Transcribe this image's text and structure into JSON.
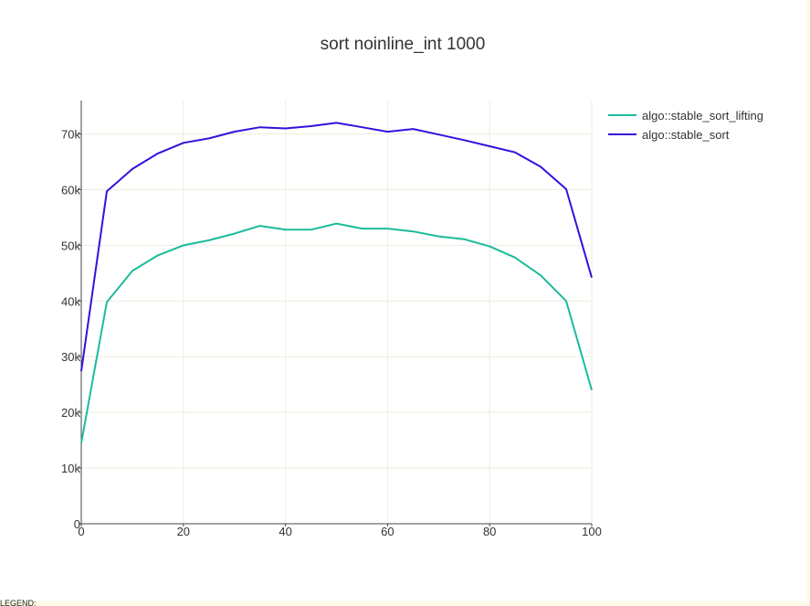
{
  "chart_data": {
    "type": "line",
    "title": "sort noinline_int 1000",
    "xlabel": "",
    "ylabel": "",
    "xlim": [
      0,
      100
    ],
    "ylim": [
      0,
      76000
    ],
    "x_ticks": [
      0,
      20,
      40,
      60,
      80,
      100
    ],
    "x_tick_labels": [
      "0",
      "20",
      "40",
      "60",
      "80",
      "100"
    ],
    "y_ticks": [
      0,
      10000,
      20000,
      30000,
      40000,
      50000,
      60000,
      70000
    ],
    "y_tick_labels": [
      "0",
      "10k",
      "20k",
      "30k",
      "40k",
      "50k",
      "60k",
      "70k"
    ],
    "grid": true,
    "legend_position": "top-right",
    "x": [
      0,
      5,
      10,
      15,
      20,
      25,
      30,
      35,
      40,
      45,
      50,
      55,
      60,
      65,
      70,
      75,
      80,
      85,
      90,
      95,
      100
    ],
    "series": [
      {
        "name": "algo::stable_sort_lifting",
        "color": "#1abc9c",
        "values": [
          14500,
          39800,
          45400,
          48200,
          50000,
          50900,
          52100,
          53500,
          52800,
          52800,
          53900,
          53000,
          53000,
          52500,
          51600,
          51100,
          49800,
          47800,
          44600,
          40000,
          24000
        ]
      },
      {
        "name": "algo::stable_sort",
        "color": "#3311dd",
        "values": [
          27400,
          59700,
          63700,
          66500,
          68400,
          69200,
          70400,
          71200,
          71000,
          71400,
          72000,
          71200,
          70400,
          70900,
          69900,
          68900,
          67800,
          66700,
          64100,
          60100,
          44200
        ]
      }
    ]
  },
  "footer": {
    "stray_text": "LEGEND:"
  }
}
